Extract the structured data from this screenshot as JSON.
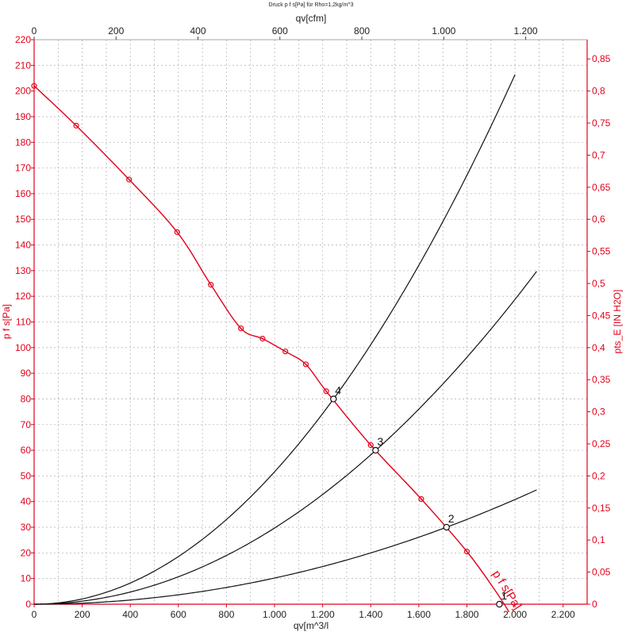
{
  "chart_data": {
    "type": "line",
    "title": "Druck p f s[Pa] für Rho=1,2kg/m^3",
    "xlabel_bottom": "qv[m^3/l",
    "xlabel_top": "qv[cfm]",
    "ylabel_left": "p f s[Pa]",
    "ylabel_right": "pts_E [IN H2O]",
    "xlim": [
      0,
      2300
    ],
    "ylim": [
      0,
      220
    ],
    "x_ticks": [
      "0",
      "200",
      "400",
      "600",
      "800",
      "1.000",
      "1.200",
      "1.400",
      "1.600",
      "1.800",
      "2.000",
      "2.200"
    ],
    "x_top_ticks": [
      "0",
      "200",
      "400",
      "600",
      "800",
      "1.000",
      "1.200"
    ],
    "y_left_ticks": [
      "0",
      "10",
      "20",
      "30",
      "40",
      "50",
      "60",
      "70",
      "80",
      "90",
      "100",
      "110",
      "120",
      "130",
      "140",
      "150",
      "160",
      "170",
      "180",
      "190",
      "200",
      "210",
      "220"
    ],
    "y_right_ticks": [
      "0",
      "0,05",
      "0,1",
      "0,15",
      "0,2",
      "0,25",
      "0,3",
      "0,35",
      "0,4",
      "0,45",
      "0,5",
      "0,55",
      "0,6",
      "0,65",
      "0,7",
      "0,75",
      "0,8",
      "0,85"
    ],
    "grid": true,
    "fan_curve": {
      "name": "p f s[Pa]",
      "color": "#e2001a",
      "x": [
        0,
        175,
        395,
        595,
        735,
        860,
        950,
        1045,
        1130,
        1215,
        1400,
        1610,
        1800,
        1920,
        1975
      ],
      "y": [
        202,
        186.5,
        165.5,
        145,
        124.5,
        107.5,
        103.5,
        98.5,
        93.5,
        83,
        62,
        41,
        20.5,
        5,
        -3
      ]
    },
    "fan_markers": {
      "x": [
        0,
        175,
        395,
        595,
        735,
        860,
        950,
        1045,
        1130,
        1215,
        1400,
        1610,
        1800
      ],
      "y": [
        202,
        186.5,
        165.5,
        145,
        124.5,
        107.5,
        103.5,
        98.5,
        93.5,
        83,
        62,
        41,
        20.5
      ]
    },
    "system_curves": [
      {
        "label": "4",
        "color": "#111111",
        "k": 5.16e-05,
        "x_max": 2005
      },
      {
        "label": "3",
        "color": "#111111",
        "k": 2.97e-05,
        "x_max": 2095
      },
      {
        "label": "2",
        "color": "#111111",
        "k": 1.02e-05,
        "x_max": 2090
      }
    ],
    "operating_points": [
      {
        "label": "4",
        "x": 1245,
        "y": 80
      },
      {
        "label": "3",
        "x": 1420,
        "y": 60
      },
      {
        "label": "2",
        "x": 1715,
        "y": 30
      },
      {
        "label": "1",
        "x": 1935,
        "y": 0
      }
    ],
    "curve_label": "p f s[Pa]"
  }
}
